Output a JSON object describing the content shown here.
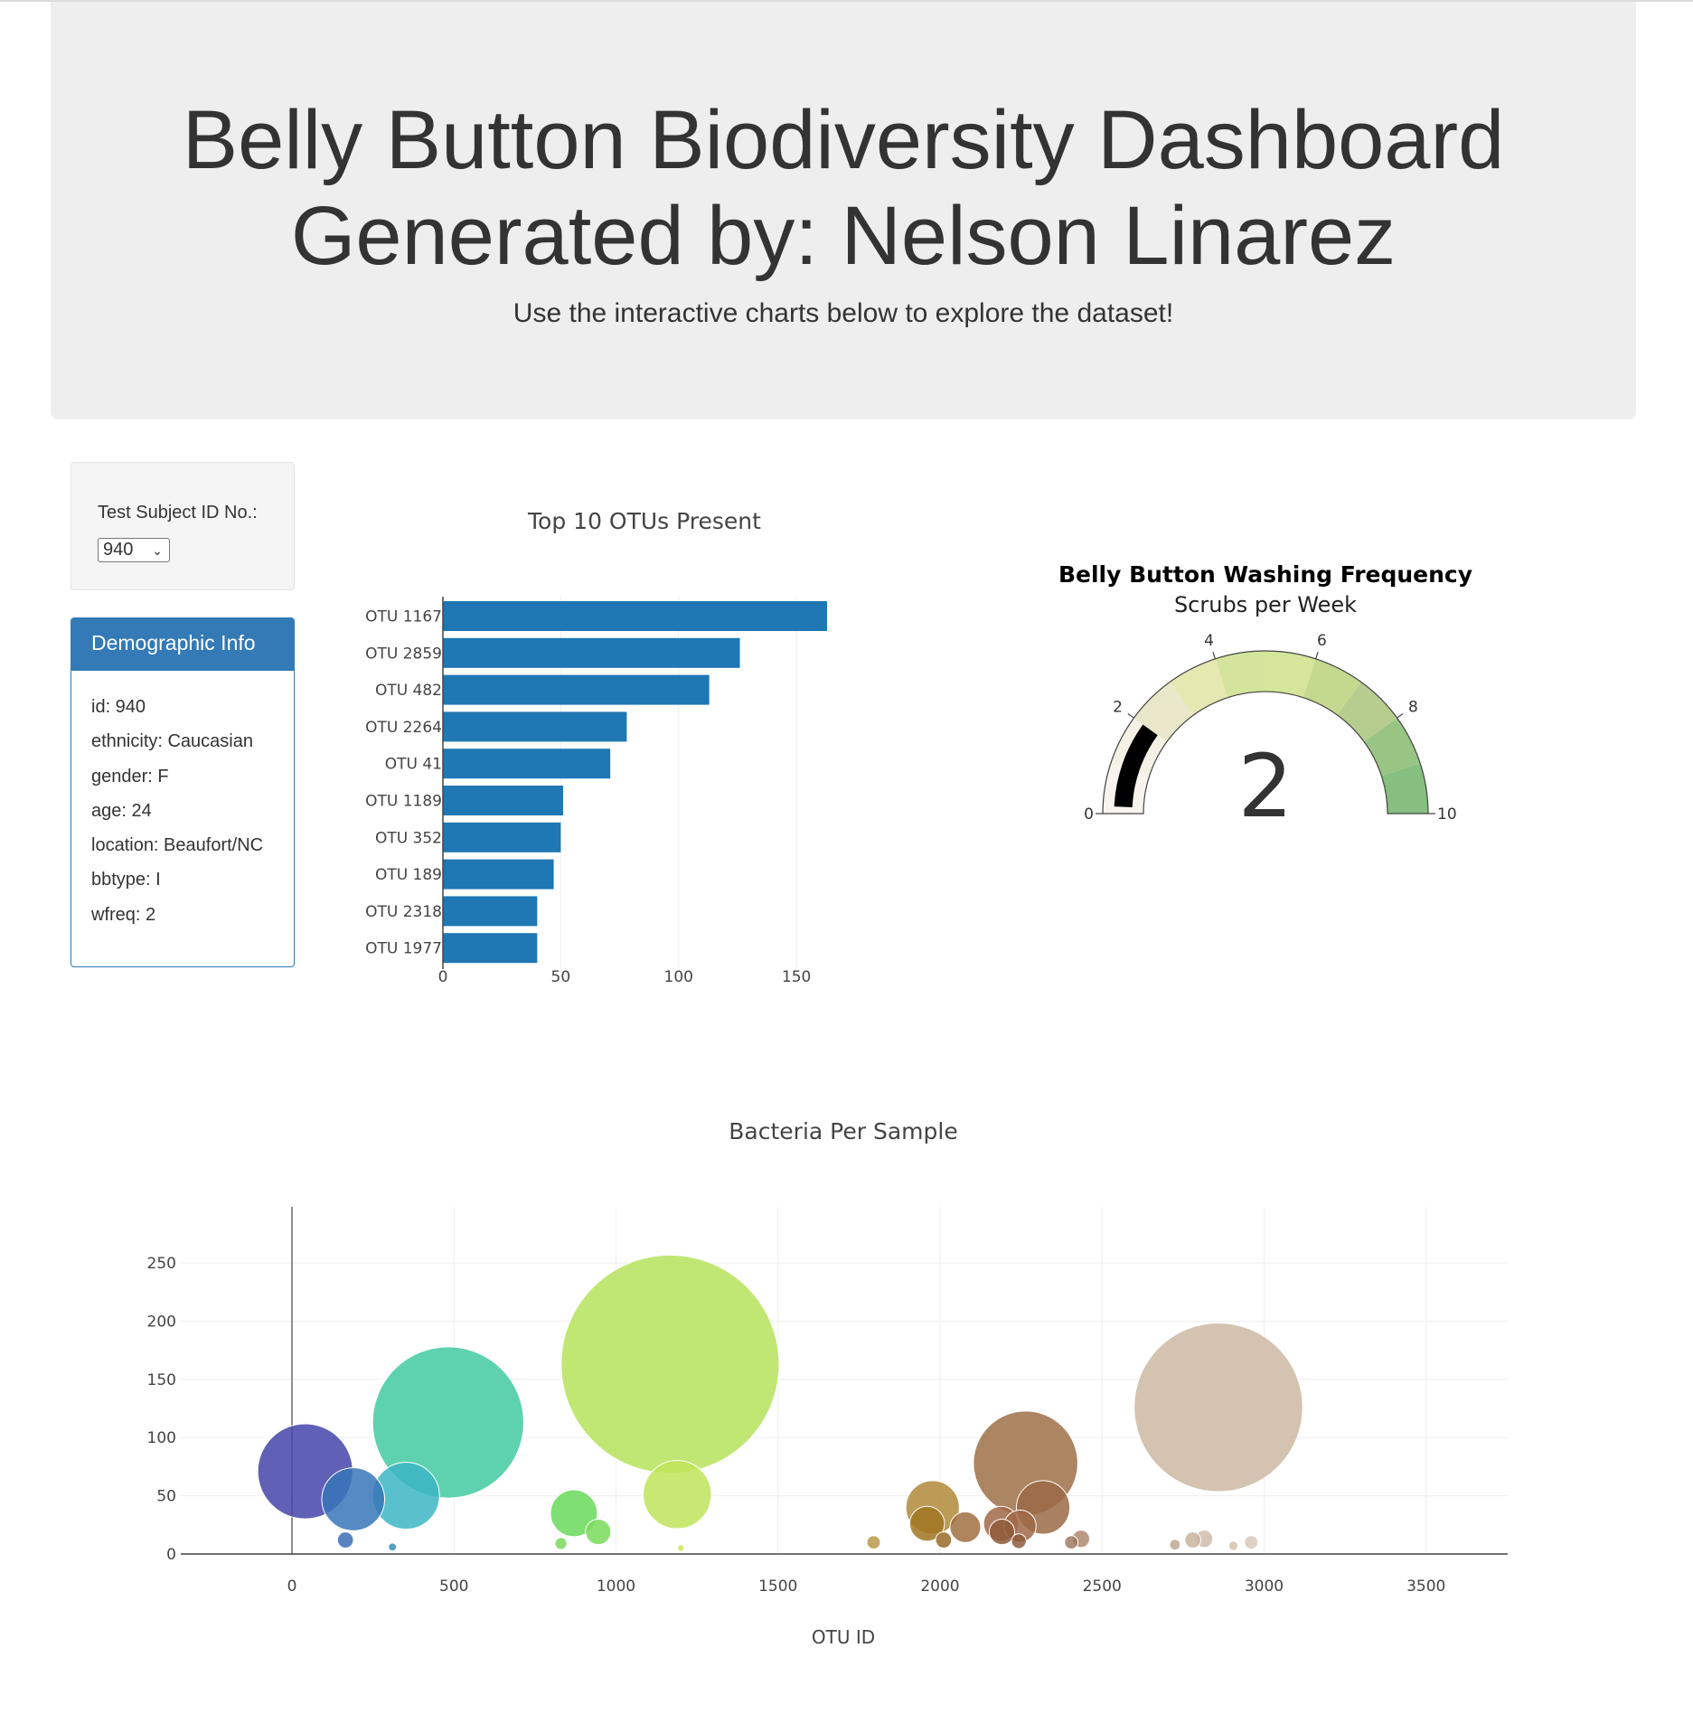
{
  "header": {
    "title_line1": "Belly Button Biodiversity Dashboard",
    "title_line2": "Generated by: Nelson Linarez",
    "subtitle": "Use the interactive charts below to explore the dataset!"
  },
  "selector": {
    "label": "Test Subject ID No.:",
    "selected": "940"
  },
  "demographics": {
    "heading": "Demographic Info",
    "rows": [
      "id: 940",
      "ethnicity: Caucasian",
      "gender: F",
      "age: 24",
      "location: Beaufort/NC",
      "bbtype: I",
      "wfreq: 2"
    ]
  },
  "colors": {
    "bar": "#1f77b4",
    "panel_header": "#337ab7",
    "gauge_needle": "#000000"
  },
  "chart_data": [
    {
      "type": "bar",
      "orientation": "horizontal",
      "title": "Top 10 OTUs Present",
      "categories": [
        "OTU 1167",
        "OTU 2859",
        "OTU 482",
        "OTU 2264",
        "OTU 41",
        "OTU 1189",
        "OTU 352",
        "OTU 189",
        "OTU 2318",
        "OTU 1977"
      ],
      "values": [
        163,
        126,
        113,
        78,
        71,
        51,
        50,
        47,
        40,
        40
      ],
      "xlim": [
        0,
        163
      ],
      "xticks": [
        "0",
        "50",
        "100",
        "150"
      ],
      "grid": true
    },
    {
      "type": "gauge",
      "title": "Belly Button Washing Frequency",
      "subtitle": "Scrubs per Week",
      "value": 2,
      "value_label": "2",
      "range": [
        0,
        10
      ],
      "ticks": [
        "0",
        "2",
        "4",
        "6",
        "8",
        "10"
      ],
      "steps": [
        {
          "range": [
            0,
            1
          ],
          "color": "#f8f3ec"
        },
        {
          "range": [
            1,
            2
          ],
          "color": "#f4f1e4"
        },
        {
          "range": [
            2,
            3
          ],
          "color": "#e9e6ca"
        },
        {
          "range": [
            3,
            4
          ],
          "color": "#e5e8b0"
        },
        {
          "range": [
            4,
            5
          ],
          "color": "#d5e49d"
        },
        {
          "range": [
            5,
            6
          ],
          "color": "#d5e599"
        },
        {
          "range": [
            6,
            7
          ],
          "color": "#c5d98e"
        },
        {
          "range": [
            7,
            8
          ],
          "color": "#b7cd8f"
        },
        {
          "range": [
            8,
            9
          ],
          "color": "#99c584"
        },
        {
          "range": [
            9,
            10
          ],
          "color": "#86bf7f"
        }
      ]
    },
    {
      "type": "scatter",
      "title": "Bacteria Per Sample",
      "xlabel": "OTU ID",
      "ylabel": "",
      "xlim": [
        -350,
        3750
      ],
      "ylim": [
        -3,
        295
      ],
      "xticks": [
        "0",
        "500",
        "1000",
        "1500",
        "2000",
        "2500",
        "3000",
        "3500"
      ],
      "yticks": [
        "0",
        "50",
        "100",
        "150",
        "200",
        "250"
      ],
      "grid": true,
      "points": [
        {
          "x": 41,
          "y": 71,
          "color": "#4444aa"
        },
        {
          "x": 189,
          "y": 47,
          "color": "#3875b9"
        },
        {
          "x": 352,
          "y": 50,
          "color": "#3bb6c3"
        },
        {
          "x": 482,
          "y": 113,
          "color": "#42caa0"
        },
        {
          "x": 165,
          "y": 12,
          "color": "#3a6fb6"
        },
        {
          "x": 310,
          "y": 6,
          "color": "#3a8fba"
        },
        {
          "x": 870,
          "y": 35,
          "color": "#6ad95a"
        },
        {
          "x": 945,
          "y": 19,
          "color": "#79dc5a"
        },
        {
          "x": 830,
          "y": 9,
          "color": "#7dd860"
        },
        {
          "x": 1167,
          "y": 163,
          "color": "#b5e35a"
        },
        {
          "x": 1189,
          "y": 51,
          "color": "#c0e45a"
        },
        {
          "x": 1200,
          "y": 5,
          "color": "#cde562"
        },
        {
          "x": 1795,
          "y": 10,
          "color": "#b99a4a"
        },
        {
          "x": 1977,
          "y": 40,
          "color": "#b08a3a"
        },
        {
          "x": 1960,
          "y": 26,
          "color": "#a07620"
        },
        {
          "x": 2011,
          "y": 12,
          "color": "#9a6a28"
        },
        {
          "x": 2078,
          "y": 23,
          "color": "#a07040"
        },
        {
          "x": 2264,
          "y": 78,
          "color": "#9e7048"
        },
        {
          "x": 2318,
          "y": 40,
          "color": "#9a6a44"
        },
        {
          "x": 2188,
          "y": 26,
          "color": "#a06848"
        },
        {
          "x": 2191,
          "y": 19,
          "color": "#8e5a3a"
        },
        {
          "x": 2247,
          "y": 24,
          "color": "#a06848"
        },
        {
          "x": 2243,
          "y": 11,
          "color": "#8e5a3a"
        },
        {
          "x": 2405,
          "y": 10,
          "color": "#a07a60"
        },
        {
          "x": 2435,
          "y": 13,
          "color": "#b08a70"
        },
        {
          "x": 2859,
          "y": 126,
          "color": "#cdb8a2"
        },
        {
          "x": 2725,
          "y": 8,
          "color": "#c0a890"
        },
        {
          "x": 2780,
          "y": 12,
          "color": "#c9b4a0"
        },
        {
          "x": 2815,
          "y": 13,
          "color": "#d0bcaa"
        },
        {
          "x": 2905,
          "y": 7,
          "color": "#d4c2b2"
        },
        {
          "x": 2960,
          "y": 10,
          "color": "#d8c8b8"
        }
      ]
    }
  ]
}
